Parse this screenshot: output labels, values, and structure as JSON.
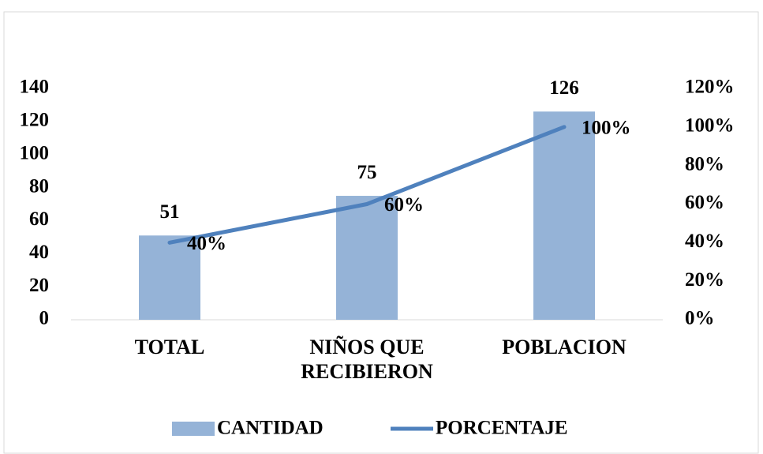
{
  "chart_data": {
    "type": "bar-line",
    "categories": [
      "TOTAL",
      "NIÑOS QUE RECIBIERON",
      "POBLACION"
    ],
    "series": [
      {
        "name": "CANTIDAD",
        "type": "bar",
        "color": "#95b3d7",
        "values": [
          51,
          75,
          126
        ]
      },
      {
        "name": "PORCENTAJE",
        "type": "line",
        "axis": "y2",
        "color": "#4f81bd",
        "values": [
          40,
          60,
          100
        ],
        "value_labels": [
          "40%",
          "60%",
          "100%"
        ]
      }
    ],
    "ylim": [
      0,
      140
    ],
    "yticks": [
      0,
      20,
      40,
      60,
      80,
      100,
      120,
      140
    ],
    "y2lim": [
      0,
      120
    ],
    "y2ticks": [
      {
        "value": 0,
        "label": "0%"
      },
      {
        "value": 20,
        "label": "20%"
      },
      {
        "value": 40,
        "label": "40%"
      },
      {
        "value": 60,
        "label": "60%"
      },
      {
        "value": 80,
        "label": "80%"
      },
      {
        "value": 100,
        "label": "100%"
      },
      {
        "value": 120,
        "label": "120%"
      }
    ],
    "grid": false,
    "legend": "bottom"
  }
}
